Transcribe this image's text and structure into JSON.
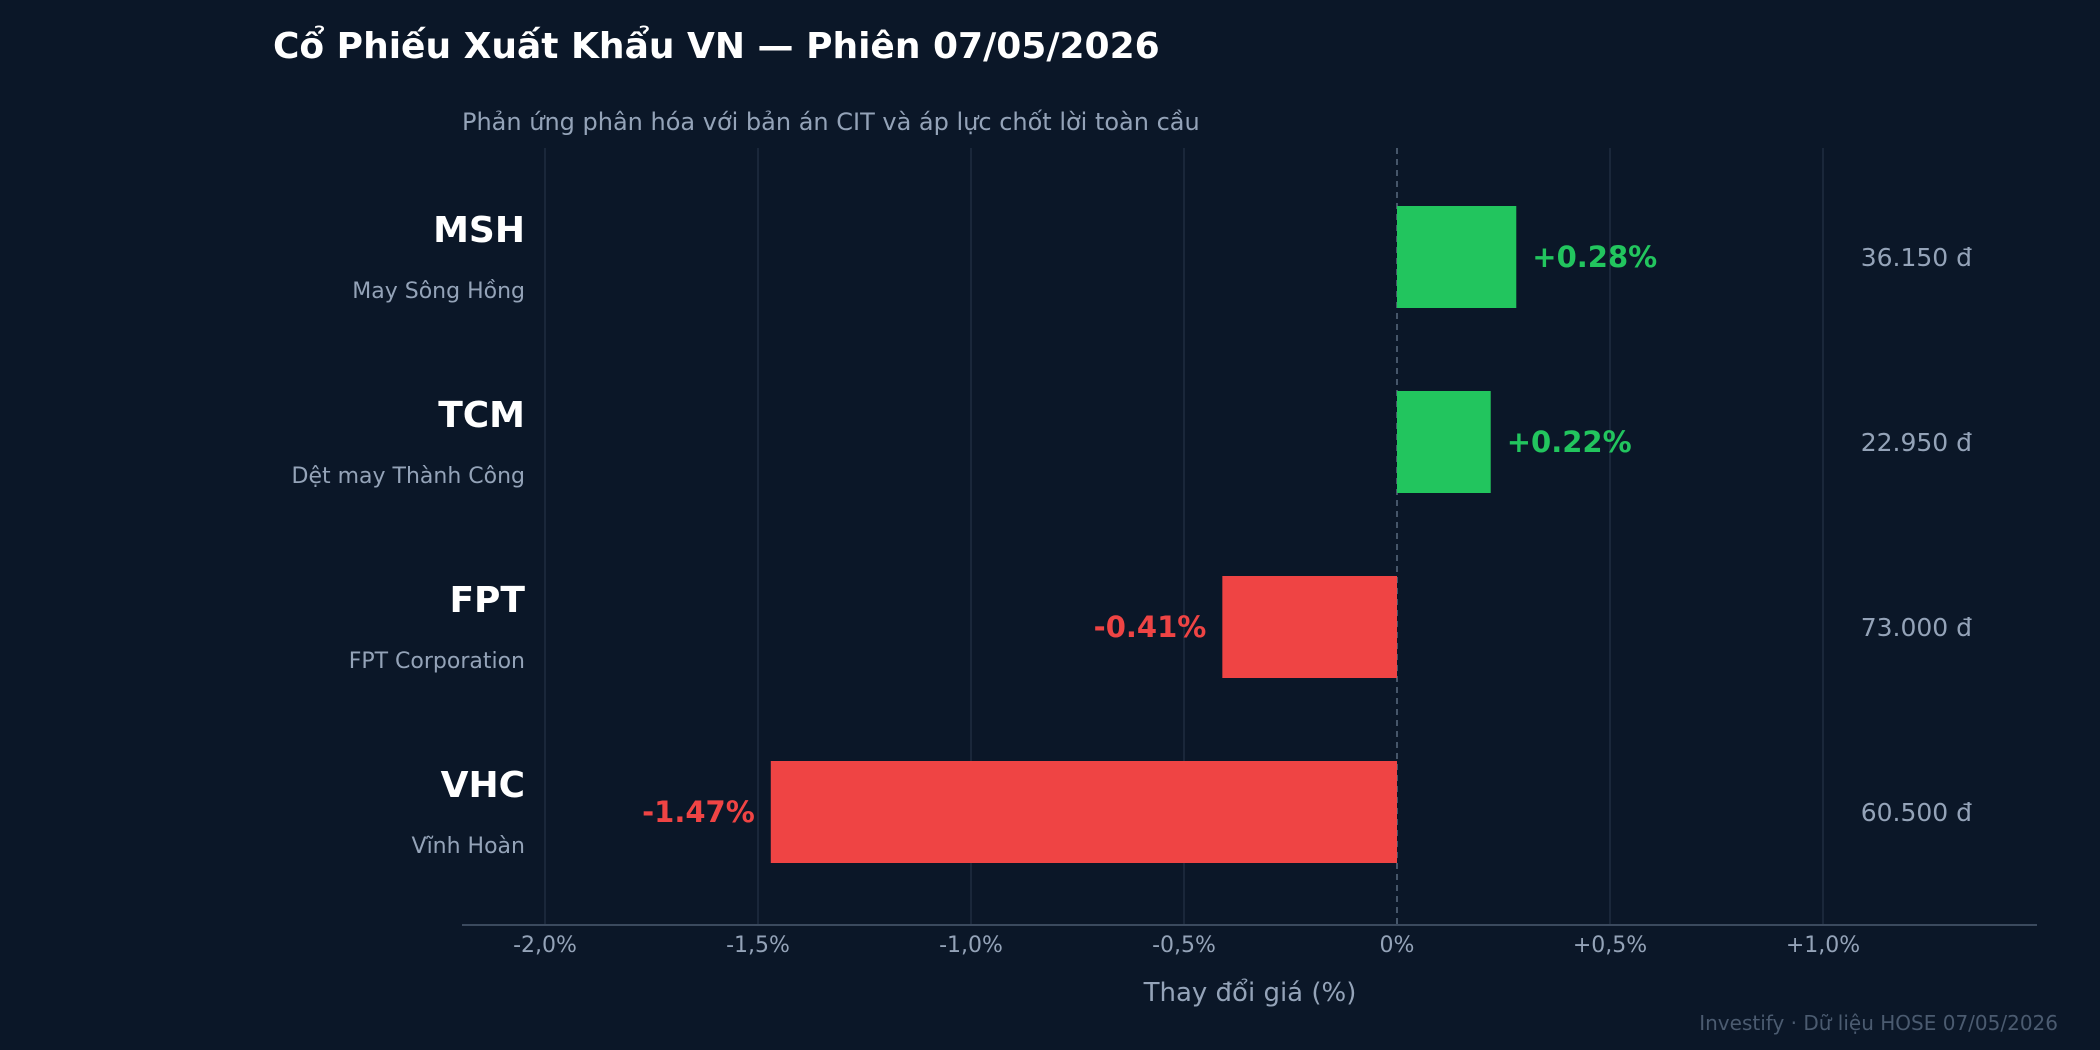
{
  "chart_data": {
    "type": "bar",
    "orientation": "horizontal",
    "title": "Cổ Phiếu Xuất Khẩu VN — Phiên 07/05/2026",
    "subtitle": "Phản ứng phân hóa với bản án CIT và áp lực chốt lời toàn cầu",
    "xlabel": "Thay đổi giá (%)",
    "ylabel": "",
    "xlim": [
      -2.2,
      1.5
    ],
    "ticks": [
      {
        "value": -2.0,
        "label": "-2,0%"
      },
      {
        "value": -1.5,
        "label": "-1,5%"
      },
      {
        "value": -1.0,
        "label": "-1,0%"
      },
      {
        "value": -0.5,
        "label": "-0,5%"
      },
      {
        "value": 0.0,
        "label": "0%"
      },
      {
        "value": 0.5,
        "label": "+0,5%"
      },
      {
        "value": 1.0,
        "label": "+1,0%"
      }
    ],
    "grid": true,
    "zero_line": "dashed",
    "categories": [
      {
        "ticker": "MSH",
        "name": "May Sông Hồng",
        "value": 0.28,
        "value_label": "+0.28%",
        "price": "36.150 đ"
      },
      {
        "ticker": "TCM",
        "name": "Dệt may Thành Công",
        "value": 0.22,
        "value_label": "+0.22%",
        "price": "22.950 đ"
      },
      {
        "ticker": "FPT",
        "name": "FPT Corporation",
        "value": -0.41,
        "value_label": "-0.41%",
        "price": "73.000 đ"
      },
      {
        "ticker": "VHC",
        "name": "Vĩnh Hoàn",
        "value": -1.47,
        "value_label": "-1.47%",
        "price": "60.500 đ"
      }
    ],
    "colors": {
      "background": "#0b1728",
      "positive": "#22c55e",
      "negative": "#ef4444",
      "grid": "#1f2d40",
      "axis": "#3b4a5e",
      "title": "#ffffff",
      "muted": "#94a3b8",
      "source": "#4b5b70"
    },
    "source": "Investify · Dữ liệu HOSE 07/05/2026"
  }
}
